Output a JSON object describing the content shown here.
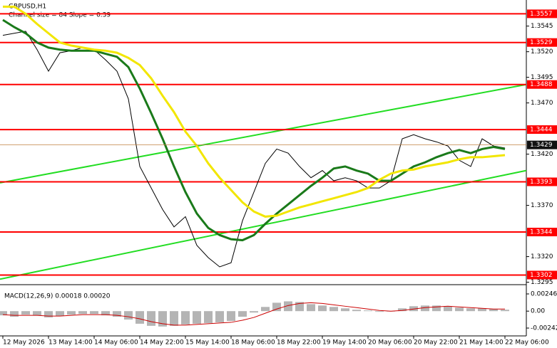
{
  "chart_data": [
    {
      "type": "line",
      "title": "GBPUSD,H1",
      "subtitle": "Channel size = 84 Slope = 0.39",
      "categories": [
        "12 May 2026",
        null,
        null,
        null,
        "13 May 14:00",
        null,
        null,
        null,
        "14 May 06:00",
        null,
        null,
        null,
        "14 May 22:00",
        null,
        null,
        null,
        "15 May 14:00",
        null,
        null,
        null,
        "18 May 06:00",
        null,
        null,
        null,
        "18 May 22:00",
        null,
        null,
        null,
        "19 May 14:00",
        null,
        null,
        null,
        "20 May 06:00",
        null,
        null,
        null,
        "20 May 22:00",
        null,
        null,
        null,
        "21 May 14:00",
        null,
        null,
        null,
        "22 May 06:00"
      ],
      "series": [
        {
          "color": "#000000",
          "values": [
            1.3536,
            1.3538,
            1.354,
            1.3522,
            1.3501,
            1.3519,
            1.3521,
            1.3524,
            1.3522,
            1.3512,
            1.3501,
            1.3474,
            1.3408,
            1.3387,
            1.3366,
            1.3349,
            1.3359,
            1.3331,
            1.3319,
            1.331,
            1.3314,
            1.3355,
            1.3383,
            1.3411,
            1.3425,
            1.3421,
            1.3408,
            1.3397,
            1.3404,
            1.3394,
            1.3397,
            1.3394,
            1.3387,
            1.3387,
            1.3394,
            1.3435,
            1.3439,
            1.3435,
            1.3432,
            1.3428,
            1.3414,
            1.3408,
            1.3435,
            1.3428,
            1.3426
          ]
        },
        {
          "color": "#1a7a1a",
          "values": [
            1.3551,
            1.3544,
            1.3538,
            1.3529,
            1.3524,
            1.3522,
            1.3521,
            1.3521,
            1.3521,
            1.3518,
            1.3515,
            1.3505,
            1.3484,
            1.346,
            1.3435,
            1.3408,
            1.3383,
            1.3362,
            1.3348,
            1.3341,
            1.3337,
            1.3336,
            1.3341,
            1.3352,
            1.3362,
            1.3371,
            1.338,
            1.3389,
            1.3397,
            1.3406,
            1.3408,
            1.3404,
            1.3401,
            1.3394,
            1.3394,
            1.3401,
            1.3408,
            1.3412,
            1.3417,
            1.3421,
            1.3424,
            1.3421,
            1.3425,
            1.3427,
            1.3425
          ]
        },
        {
          "color": "#f2e600",
          "values": [
            1.3564,
            1.3564,
            1.3557,
            1.3547,
            1.3538,
            1.3529,
            1.3526,
            1.3524,
            1.3522,
            1.3521,
            1.3519,
            1.3514,
            1.3507,
            1.3494,
            1.3477,
            1.3461,
            1.3442,
            1.3428,
            1.3411,
            1.3397,
            1.3385,
            1.3373,
            1.3364,
            1.3359,
            1.336,
            1.3364,
            1.3368,
            1.3371,
            1.3374,
            1.3377,
            1.338,
            1.3383,
            1.3387,
            1.3395,
            1.3401,
            1.3404,
            1.3405,
            1.3408,
            1.341,
            1.3412,
            1.3415,
            1.3417,
            1.3417,
            1.3418,
            1.3419
          ]
        }
      ],
      "levels": {
        "color": "#ff0000",
        "values": [
          1.3557,
          1.3529,
          1.3488,
          1.3444,
          1.3393,
          1.3344,
          1.3302
        ]
      },
      "current_price": 1.3429,
      "channels": [
        {
          "color": "#22dd22",
          "values": [
            1.3392,
            1.3488
          ]
        },
        {
          "color": "#22dd22",
          "values": [
            1.3298,
            1.3404
          ]
        }
      ],
      "ylim": [
        1.3294,
        1.3567
      ],
      "yticks": [
        1.3545,
        {
          "value": 1.352,
          "label": "1.3520"
        },
        1.3495,
        {
          "value": 1.347,
          "label": "1.3470"
        },
        {
          "value": 1.342,
          "label": "1.3420"
        },
        {
          "value": 1.337,
          "label": "1.3370"
        },
        {
          "value": 1.332,
          "label": "1.3320"
        },
        1.3295
      ]
    },
    {
      "type": "bar",
      "title": "MACD(12,26,9) 0.00018 0.00020",
      "ylim": [
        -0.00242,
        0.00246
      ],
      "yticks": [
        0.00246,
        {
          "value": 0,
          "label": "0.00"
        },
        -0.00242
      ],
      "histogram": {
        "color": "#b4b4b4",
        "values": [
          -0.0006,
          -0.0008,
          -0.0005,
          -0.0006,
          -0.0009,
          -0.0007,
          -0.0005,
          -0.0004,
          -0.0004,
          -0.0006,
          -0.0008,
          -0.0012,
          -0.0018,
          -0.0021,
          -0.0022,
          -0.0021,
          -0.0019,
          -0.0018,
          -0.0017,
          -0.0016,
          -0.0014,
          -0.0008,
          -0.0002,
          0.0006,
          0.0012,
          0.0014,
          0.0013,
          0.001,
          0.0008,
          0.0006,
          0.0004,
          0.0002,
          0.0001,
          -0.0001,
          0.0,
          0.0004,
          0.0007,
          0.0008,
          0.0008,
          0.0007,
          0.0005,
          0.0004,
          0.0004,
          0.0003,
          0.0002
        ]
      },
      "signal": {
        "color": "#cc0000",
        "values": [
          -0.0005,
          -0.0006,
          -0.0006,
          -0.0006,
          -0.0007,
          -0.0007,
          -0.0006,
          -0.0005,
          -0.0005,
          -0.0005,
          -0.0006,
          -0.0008,
          -0.0011,
          -0.0015,
          -0.0018,
          -0.002,
          -0.002,
          -0.0019,
          -0.0018,
          -0.0017,
          -0.0016,
          -0.0013,
          -0.0009,
          -0.0003,
          0.0003,
          0.0008,
          0.0011,
          0.0012,
          0.0011,
          0.0009,
          0.0007,
          0.0005,
          0.0003,
          0.0001,
          0.0,
          0.0001,
          0.0003,
          0.0005,
          0.0006,
          0.0007,
          0.0006,
          0.0005,
          0.0004,
          0.0003,
          0.0003
        ]
      }
    }
  ]
}
